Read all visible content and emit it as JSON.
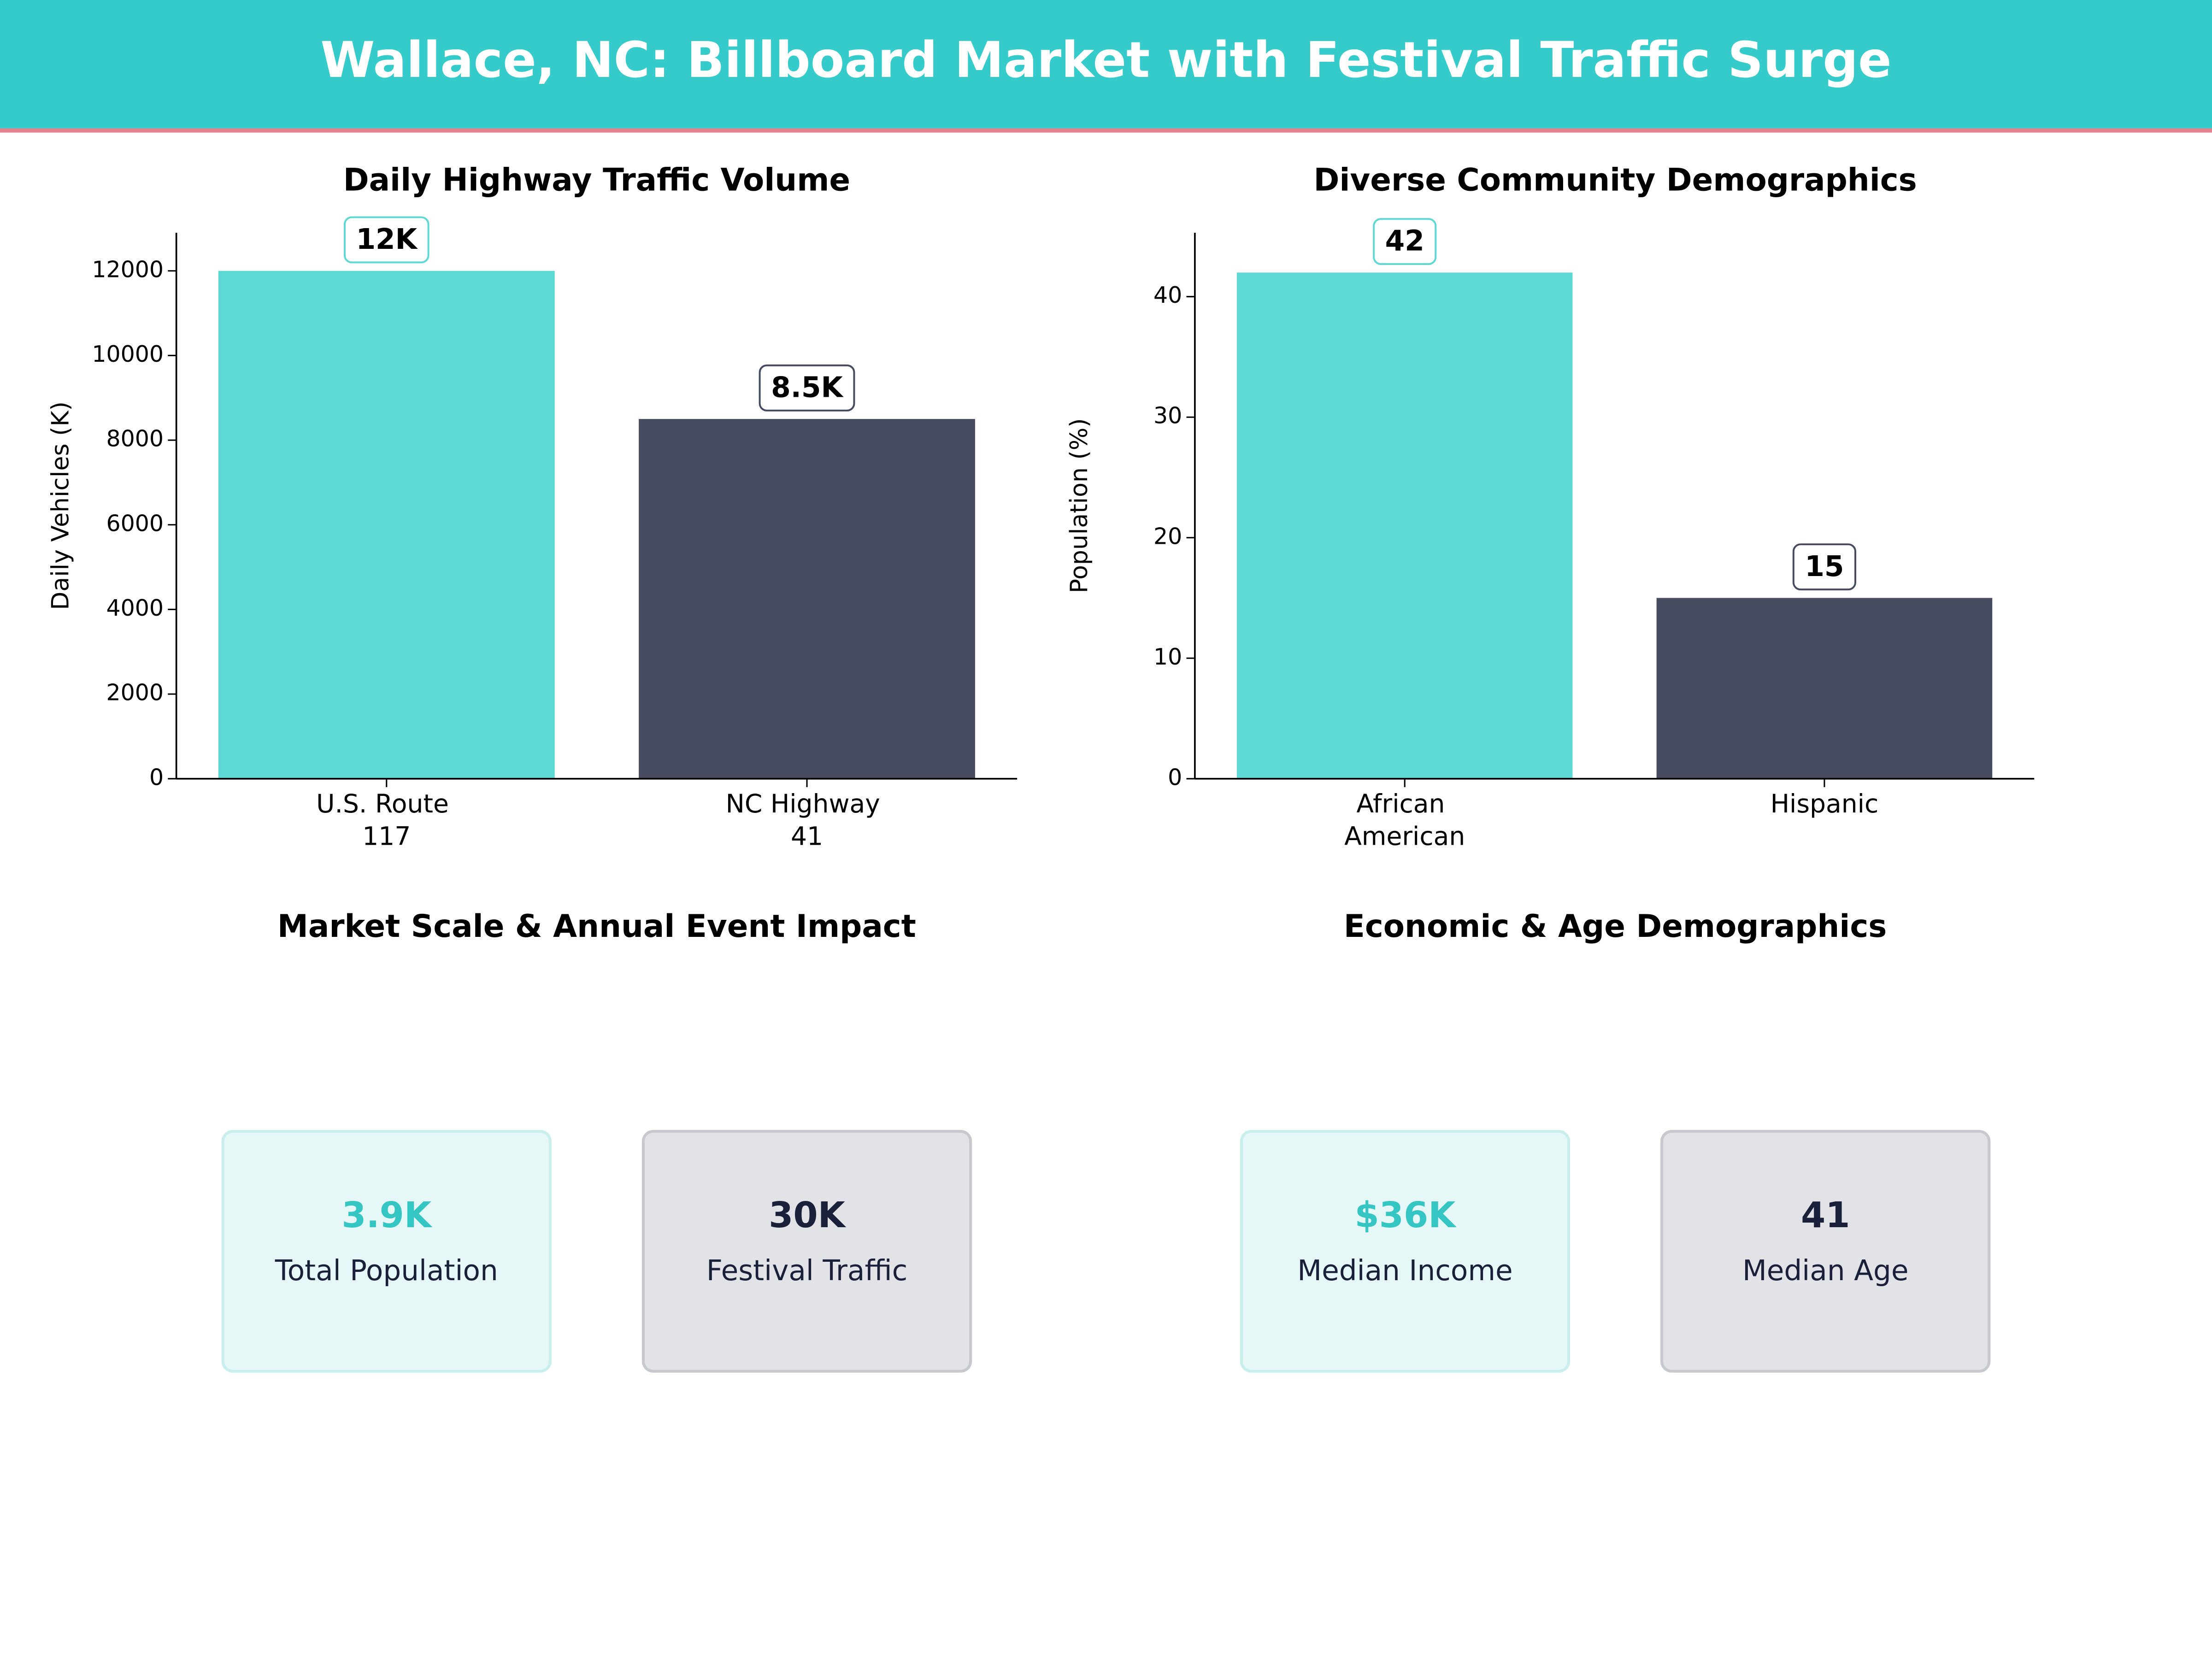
{
  "title": "Wallace, NC: Billboard Market with Festival Traffic Surge",
  "chart_data": [
    {
      "type": "bar",
      "title": "Daily Highway Traffic Volume",
      "ylabel": "Daily Vehicles (K)",
      "categories": [
        "U.S. Route 117",
        "NC Highway 41"
      ],
      "values": [
        12000,
        8500
      ],
      "value_labels": [
        "12K",
        "8.5K"
      ],
      "colors": [
        "#5dd8d4",
        "#474b5f"
      ],
      "ylim": [
        0,
        12900
      ],
      "yticks": [
        0,
        2000,
        4000,
        6000,
        8000,
        10000,
        12000
      ]
    },
    {
      "type": "bar",
      "title": "Diverse Community Demographics",
      "ylabel": "Population (%)",
      "categories": [
        "African American",
        "Hispanic"
      ],
      "values": [
        42,
        15
      ],
      "colors": [
        "#5dd8d4",
        "#474b5f"
      ],
      "ylim": [
        0,
        45.3
      ],
      "yticks": [
        0,
        10,
        20,
        30,
        40
      ]
    }
  ],
  "panels": [
    {
      "title": "Market Scale & Annual Event Impact",
      "cards": [
        {
          "value": "3.9K",
          "label": "Total Population"
        },
        {
          "value": "30K",
          "label": "Festival Traffic"
        }
      ]
    },
    {
      "title": "Economic & Age Demographics",
      "cards": [
        {
          "value": "$36K",
          "label": "Median Income"
        },
        {
          "value": "41",
          "label": "Median Age"
        }
      ]
    }
  ]
}
